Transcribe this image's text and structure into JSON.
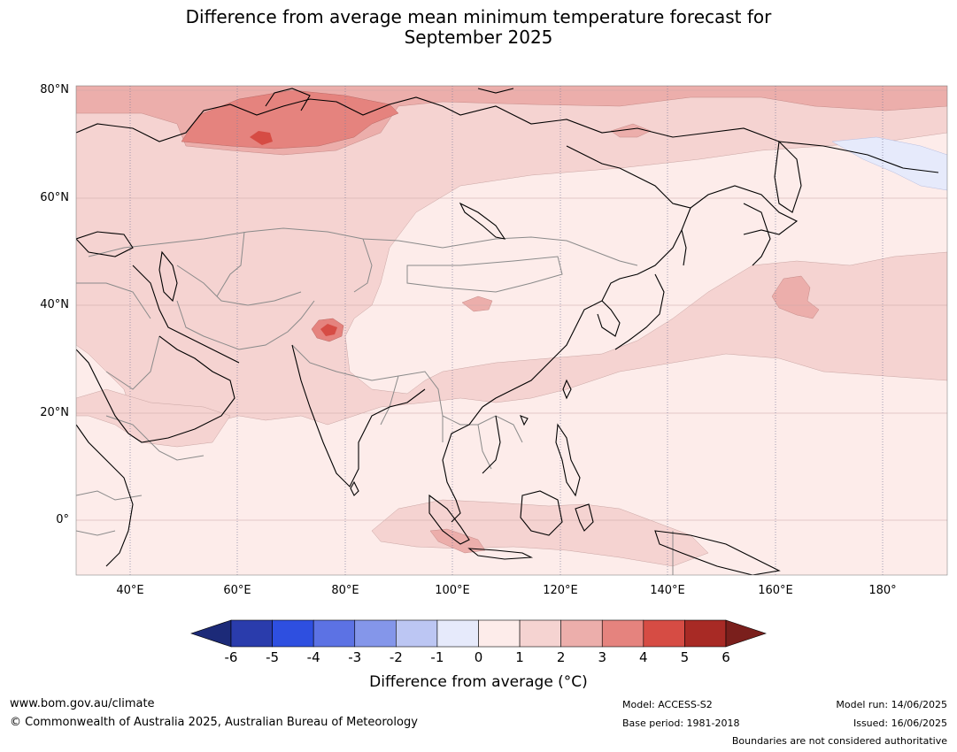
{
  "title_line1": "Difference from average mean minimum temperature forecast for",
  "title_line2": "September 2025",
  "map": {
    "lat_labels": [
      "80°N",
      "60°N",
      "40°N",
      "20°N",
      "0°"
    ],
    "lon_labels": [
      "40°E",
      "60°E",
      "80°E",
      "100°E",
      "120°E",
      "140°E",
      "160°E",
      "180°"
    ],
    "lat_values": [
      80,
      60,
      40,
      20,
      0
    ],
    "lon_values": [
      40,
      60,
      80,
      100,
      120,
      140,
      160,
      180
    ],
    "extent": {
      "lon_min": 30,
      "lon_max": 192,
      "lat_min": -10,
      "lat_max": 81
    }
  },
  "colorbar": {
    "ticks": [
      "-6",
      "-5",
      "-4",
      "-3",
      "-2",
      "-1",
      "0",
      "1",
      "2",
      "3",
      "4",
      "5",
      "6"
    ],
    "colors": [
      "#2a3cac",
      "#2e4fe0",
      "#5c72e4",
      "#8496ea",
      "#bcc6f3",
      "#e6eafb",
      "#fdecea",
      "#f5d3d1",
      "#ecaeab",
      "#e5837e",
      "#d64c44",
      "#a82a25"
    ],
    "under_color": "#1c2a78",
    "over_color": "#7a1f1c",
    "label": "Difference from average (°C)"
  },
  "footer": {
    "url": "www.bom.gov.au/climate",
    "copyright": "© Commonwealth of Australia 2025, Australian Bureau of Meteorology",
    "model": "Model: ACCESS-S2",
    "base_period": "Base period: 1981-2018",
    "model_run": "Model run: 14/06/2025",
    "issued": "Issued: 16/06/2025",
    "disclaimer": "Boundaries are not considered authoritative"
  }
}
